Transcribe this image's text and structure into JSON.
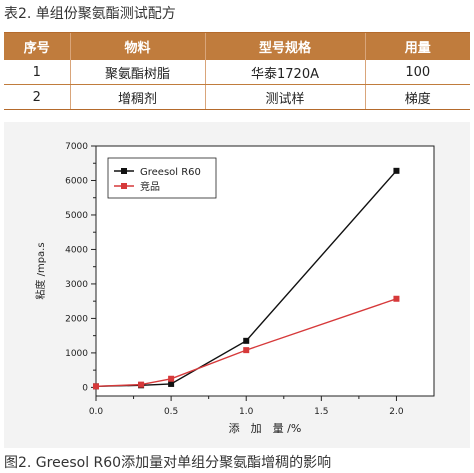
{
  "table": {
    "caption": "表2. 单组份聚氨酯测试配方",
    "headers": [
      "序号",
      "物料",
      "型号规格",
      "用量"
    ],
    "rows": [
      [
        "1",
        "聚氨酯树脂",
        "华泰1720A",
        "100"
      ],
      [
        "2",
        "增稠剂",
        "测试样",
        "梯度"
      ]
    ]
  },
  "figure": {
    "caption": "图2. Greesol R60添加量对单组分聚氨酯增稠的影响"
  },
  "chart_data": {
    "type": "line",
    "title": "",
    "xlabel": "添　加　量 /%",
    "ylabel": "粘度 /mpa.s",
    "xlim": [
      0,
      2.25
    ],
    "ylim": [
      -250,
      7000
    ],
    "xticks": [
      0.0,
      0.5,
      1.0,
      1.5,
      2.0
    ],
    "xtick_labels": [
      "0.0",
      "0.5",
      "1.0",
      "1.5",
      "2.0"
    ],
    "yticks": [
      0,
      1000,
      2000,
      3000,
      4000,
      5000,
      6000,
      7000
    ],
    "ytick_labels": [
      "0",
      "1000",
      "2000",
      "3000",
      "4000",
      "5000",
      "6000",
      "7000"
    ],
    "grid": false,
    "legend_position": "top-left",
    "series": [
      {
        "name": "Greesol R60",
        "color": "#111111",
        "marker": "square",
        "points": [
          [
            0.0,
            30
          ],
          [
            0.3,
            60
          ],
          [
            0.5,
            100
          ],
          [
            1.0,
            1350
          ],
          [
            2.0,
            6280
          ]
        ]
      },
      {
        "name": "竞品",
        "color": "#d6393a",
        "marker": "square",
        "points": [
          [
            0.0,
            30
          ],
          [
            0.3,
            80
          ],
          [
            0.5,
            250
          ],
          [
            1.0,
            1080
          ],
          [
            2.0,
            2570
          ]
        ]
      }
    ]
  }
}
